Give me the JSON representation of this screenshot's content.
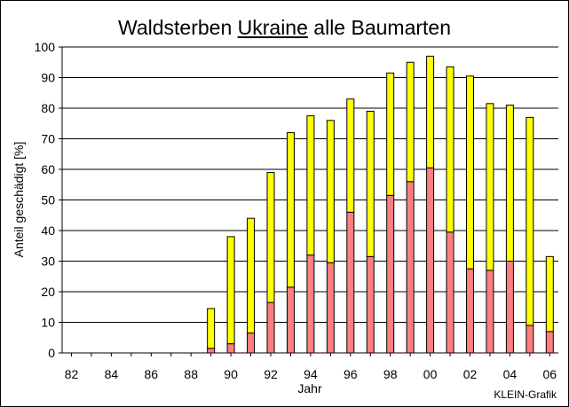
{
  "chart_data": {
    "type": "bar",
    "stacked": true,
    "title_parts": [
      "Waldsterben ",
      "Ukraine",
      " alle Baumarten"
    ],
    "xlabel": "Jahr",
    "ylabel": "Anteil geschädigt [%]",
    "ylim": [
      0,
      100
    ],
    "yticks": [
      0,
      10,
      20,
      30,
      40,
      50,
      60,
      70,
      80,
      90,
      100
    ],
    "grid": true,
    "legend": "none",
    "categories": [
      "82",
      "83",
      "84",
      "85",
      "86",
      "87",
      "88",
      "89",
      "90",
      "91",
      "92",
      "93",
      "94",
      "95",
      "96",
      "97",
      "98",
      "99",
      "00",
      "01",
      "02",
      "03",
      "04",
      "05",
      "06"
    ],
    "xtick_labels": [
      "82",
      "",
      "84",
      "",
      "86",
      "",
      "88",
      "",
      "90",
      "",
      "92",
      "",
      "94",
      "",
      "96",
      "",
      "98",
      "",
      "00",
      "",
      "02",
      "",
      "04",
      "",
      "06"
    ],
    "series": [
      {
        "color": "#ff7f7f",
        "values": [
          null,
          null,
          null,
          null,
          null,
          null,
          null,
          1.5,
          3,
          6.5,
          16.5,
          21.5,
          32,
          29.5,
          46,
          31.5,
          51.5,
          56,
          60.5,
          39.5,
          27.5,
          27,
          30,
          9,
          7
        ]
      },
      {
        "color": "#ffff00",
        "values": [
          null,
          null,
          null,
          null,
          null,
          null,
          null,
          13,
          35,
          37.5,
          42.5,
          50.5,
          45.5,
          46.5,
          37,
          47.5,
          40,
          39,
          36.5,
          54,
          63,
          54.5,
          51,
          68,
          24.5
        ]
      }
    ],
    "totals": [
      null,
      null,
      null,
      null,
      null,
      null,
      null,
      14.5,
      38,
      44,
      59,
      72,
      77.5,
      76,
      83,
      79,
      91.5,
      95,
      97,
      93.5,
      90.5,
      81.5,
      81,
      77,
      31.5
    ]
  },
  "credit": "KLEIN-Grafik"
}
